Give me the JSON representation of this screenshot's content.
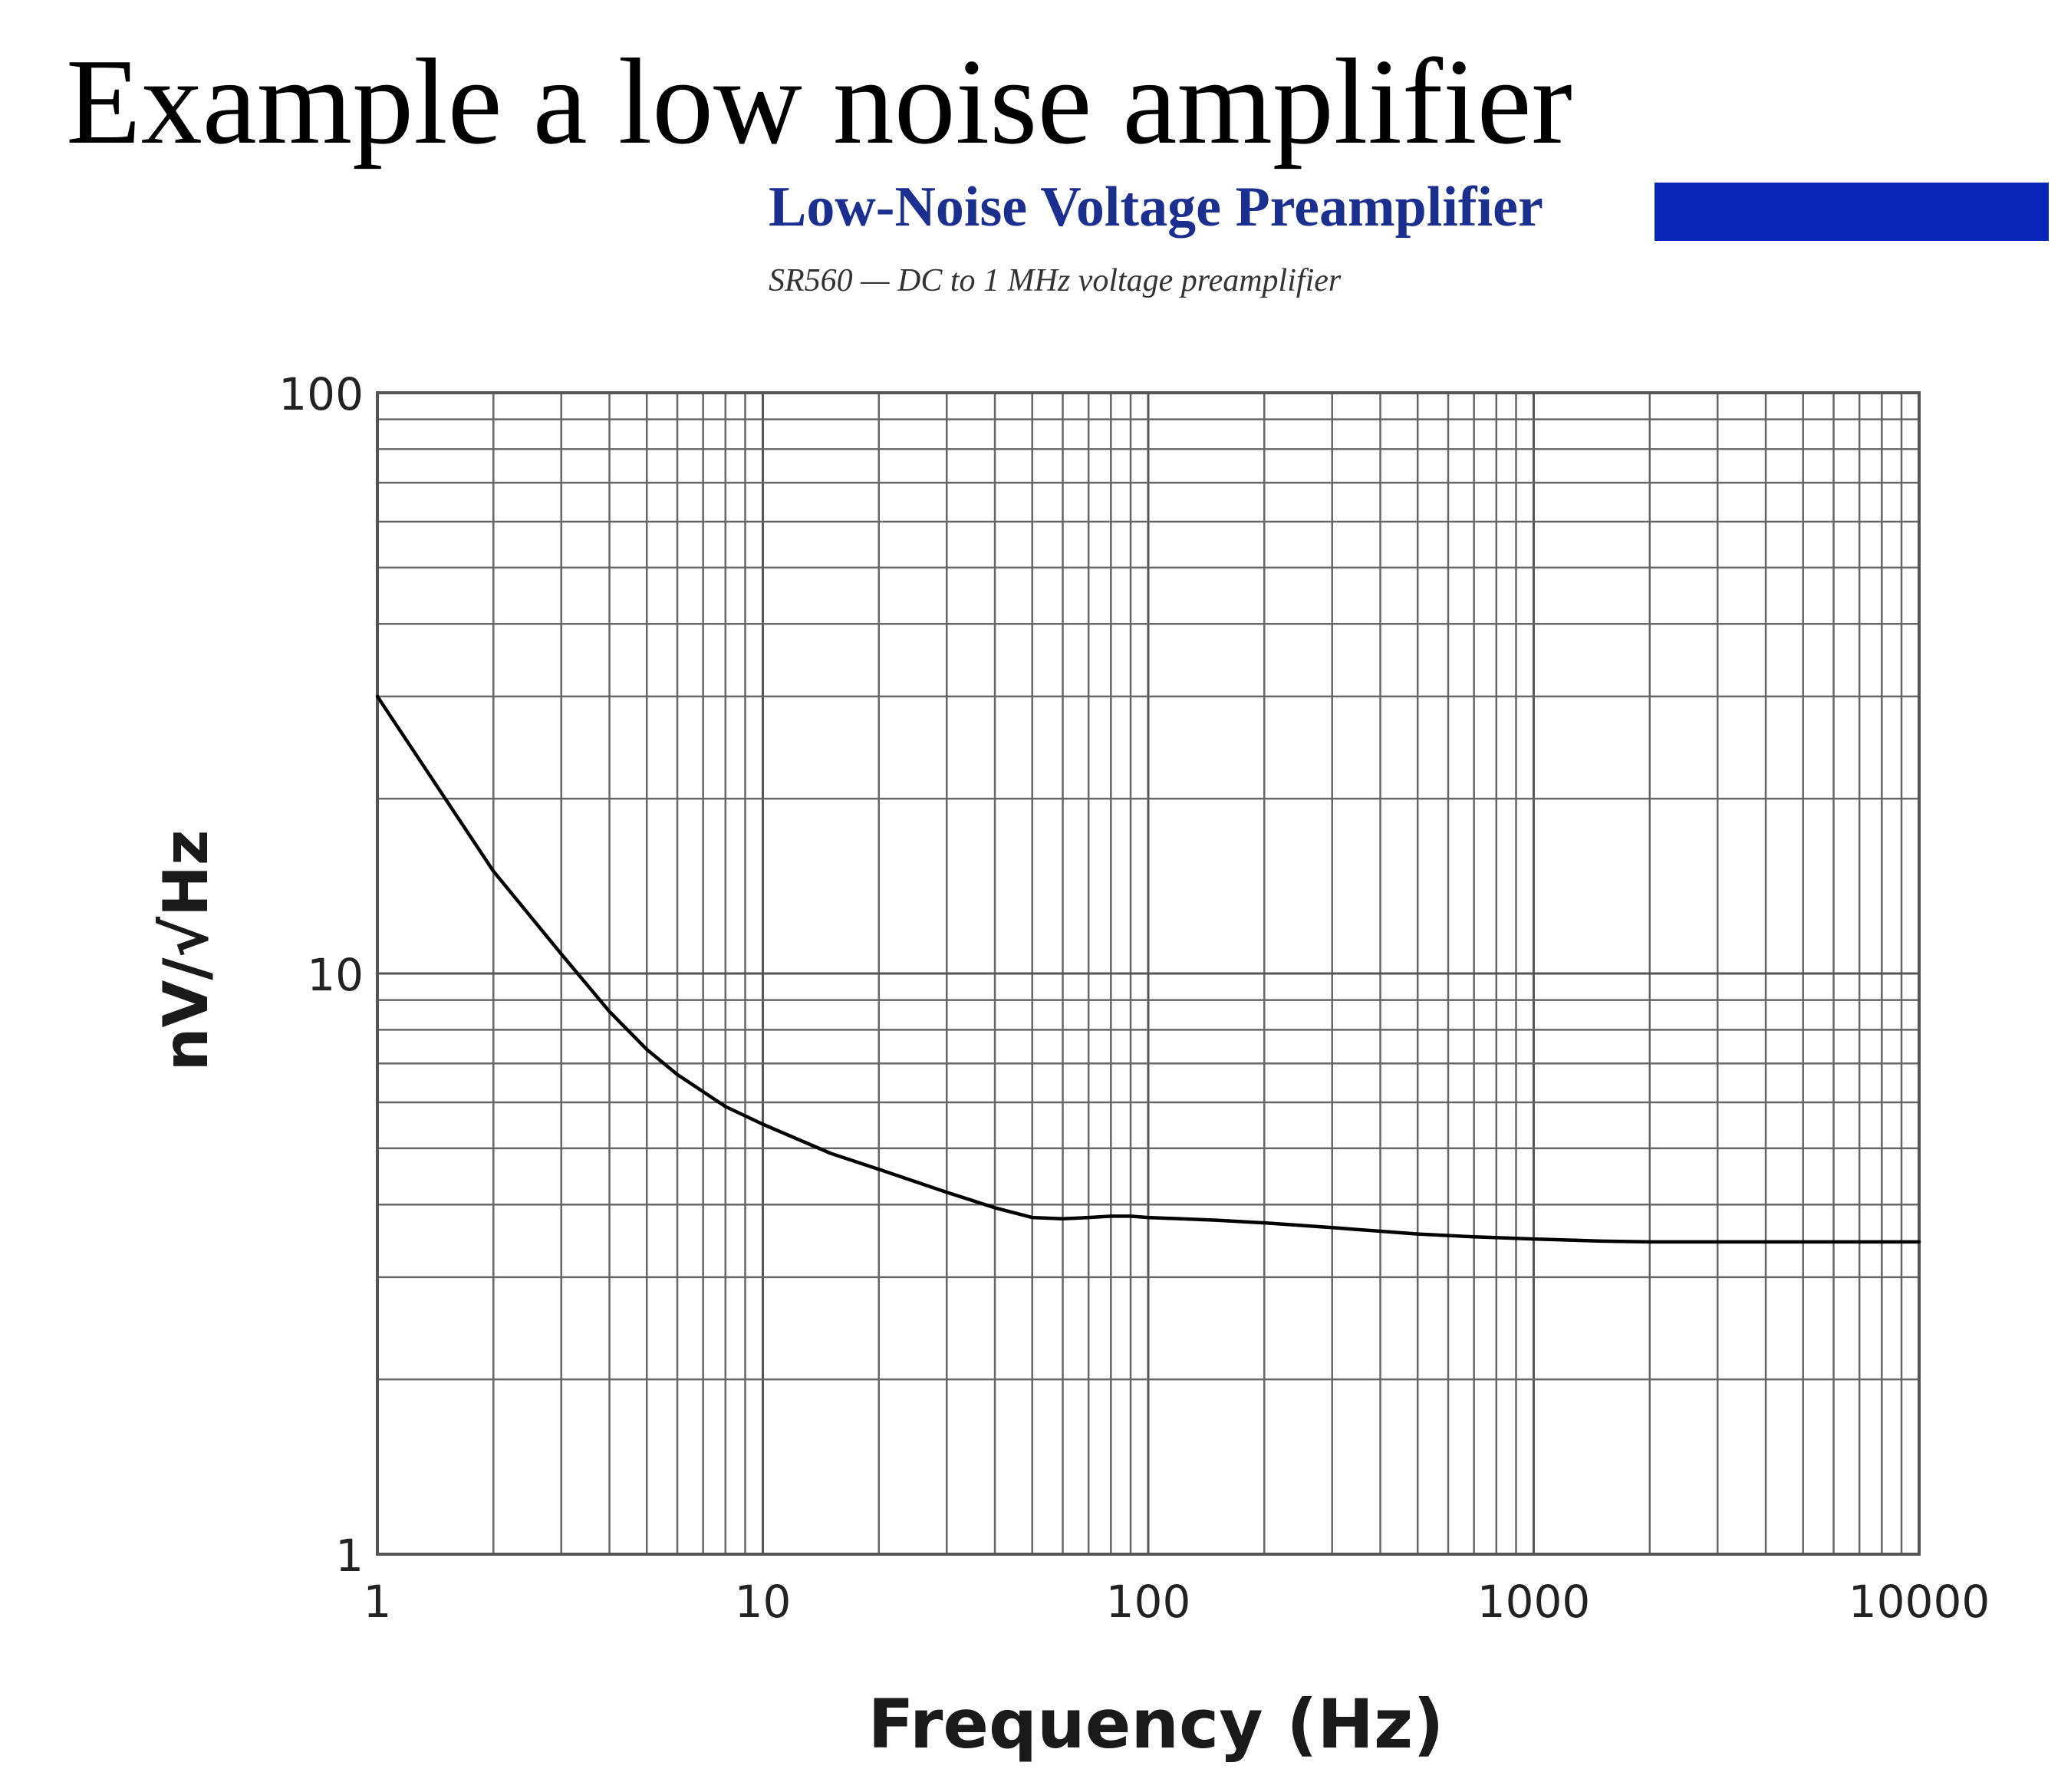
{
  "page": {
    "title": "Example a low noise amplifier"
  },
  "header": {
    "title": "Low-Noise Voltage Preamplifier",
    "subtitle": "SR560 — DC to 1 MHz voltage preamplifier",
    "title_color": "#1b2f8f",
    "bar_color": "#0a26b8"
  },
  "chart_data": {
    "type": "line",
    "title": "",
    "xlabel": "Frequency (Hz)",
    "ylabel": "nV/√Hz",
    "xscale": "log",
    "yscale": "log",
    "xlim": [
      1,
      10000
    ],
    "ylim": [
      1,
      100
    ],
    "x_ticks": [
      "1",
      "10",
      "100",
      "1000",
      "10000"
    ],
    "y_ticks": [
      "1",
      "10",
      "100"
    ],
    "grid": true,
    "legend": "none",
    "series": [
      {
        "color": "#000000",
        "x": [
          1,
          1.5,
          2,
          3,
          4,
          5,
          6,
          8,
          10,
          15,
          20,
          30,
          40,
          50,
          60,
          70,
          80,
          90,
          100,
          150,
          200,
          300,
          500,
          700,
          1000,
          1500,
          2000,
          3000,
          5000,
          10000
        ],
        "y": [
          30,
          20,
          15,
          10.8,
          8.6,
          7.4,
          6.7,
          5.9,
          5.5,
          4.9,
          4.6,
          4.2,
          3.95,
          3.8,
          3.78,
          3.8,
          3.82,
          3.82,
          3.8,
          3.76,
          3.72,
          3.65,
          3.56,
          3.52,
          3.49,
          3.46,
          3.45,
          3.45,
          3.45,
          3.45
        ]
      }
    ]
  }
}
